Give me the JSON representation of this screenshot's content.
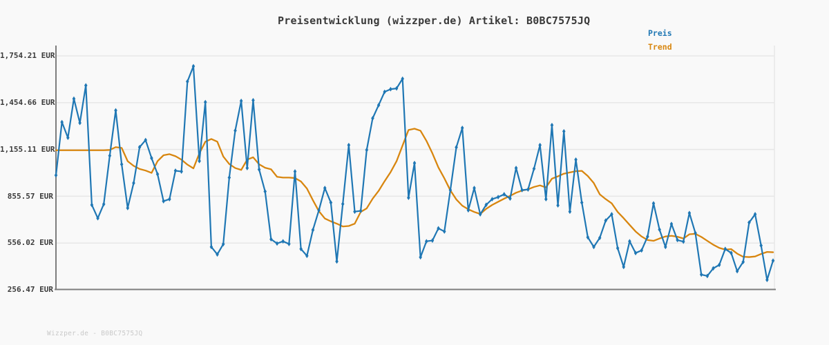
{
  "header": {
    "title": "Preisentwicklung (wizzper.de) Artikel: B0BC7575JQ"
  },
  "legend": {
    "items": [
      {
        "label": "Preis",
        "color": "#1f77b4"
      },
      {
        "label": "Trend",
        "color": "#d8860f"
      }
    ]
  },
  "footer": {
    "watermark": "Wizzper.de - B0BC7575JQ"
  },
  "chart_data": {
    "type": "line",
    "title": "Preisentwicklung (wizzper.de) Artikel: B0BC7575JQ",
    "xlabel": "",
    "ylabel": "",
    "currency": "EUR",
    "grid": true,
    "legend_position": "top-right",
    "x_tick_labels": [],
    "ylim": [
      256.47,
      1820
    ],
    "y_ticks": [
      {
        "label": "1,754.21 EUR",
        "value": 1754.21
      },
      {
        "label": "1,454.66 EUR",
        "value": 1454.66
      },
      {
        "label": "1,155.11 EUR",
        "value": 1155.11
      },
      {
        "label": "855.57 EUR",
        "value": 855.57
      },
      {
        "label": "556.02 EUR",
        "value": 556.02
      },
      {
        "label": "256.47 EUR",
        "value": 256.47
      }
    ],
    "series": [
      {
        "name": "Preis",
        "color": "#1f77b4",
        "marker": "diamond",
        "values": [
          990,
          1330,
          1230,
          1480,
          1325,
          1565,
          800,
          715,
          805,
          1115,
          1405,
          1060,
          780,
          940,
          1170,
          1215,
          1100,
          997,
          824,
          837,
          1019,
          1014,
          1590,
          1688,
          1081,
          1458,
          531,
          483,
          549,
          975,
          1276,
          1466,
          1036,
          1470,
          1027,
          886,
          580,
          553,
          567,
          550,
          1014,
          518,
          474,
          640,
          766,
          908,
          815,
          438,
          806,
          1183,
          757,
          762,
          1152,
          1355,
          1439,
          1524,
          1541,
          1546,
          1608,
          846,
          1068,
          465,
          567,
          572,
          650,
          630,
          895,
          1169,
          1293,
          766,
          908,
          740,
          801,
          837,
          850,
          868,
          841,
          1036,
          895,
          899,
          1032,
          1183,
          837,
          1311,
          797,
          1271,
          757,
          1090,
          815,
          593,
          531,
          589,
          700,
          740,
          523,
          403,
          567,
          492,
          509,
          597,
          810,
          642,
          531,
          678,
          575,
          565,
          748,
          620,
          354,
          345,
          394,
          416,
          518,
          492,
          376,
          435,
          687,
          740,
          540,
          320,
          443
        ]
      },
      {
        "name": "Trend",
        "color": "#d8860f",
        "marker": "none",
        "values": [
          1150,
          1150,
          1150,
          1150,
          1150,
          1150,
          1150,
          1150,
          1150,
          1152,
          1170,
          1165,
          1080,
          1050,
          1030,
          1020,
          1005,
          1080,
          1118,
          1125,
          1112,
          1090,
          1058,
          1034,
          1130,
          1205,
          1222,
          1205,
          1110,
          1062,
          1036,
          1024,
          1090,
          1105,
          1060,
          1038,
          1028,
          980,
          975,
          975,
          972,
          950,
          905,
          830,
          760,
          713,
          695,
          680,
          662,
          665,
          680,
          755,
          778,
          840,
          890,
          952,
          1010,
          1080,
          1180,
          1280,
          1288,
          1275,
          1210,
          1130,
          1040,
          970,
          893,
          835,
          795,
          772,
          755,
          742,
          775,
          800,
          820,
          840,
          858,
          878,
          892,
          900,
          915,
          925,
          912,
          968,
          983,
          1000,
          1008,
          1016,
          1018,
          985,
          940,
          868,
          837,
          810,
          755,
          715,
          672,
          630,
          598,
          575,
          570,
          585,
          598,
          602,
          596,
          585,
          612,
          615,
          595,
          570,
          545,
          525,
          514,
          517,
          488,
          468,
          466,
          470,
          486,
          499,
          497
        ]
      }
    ]
  }
}
